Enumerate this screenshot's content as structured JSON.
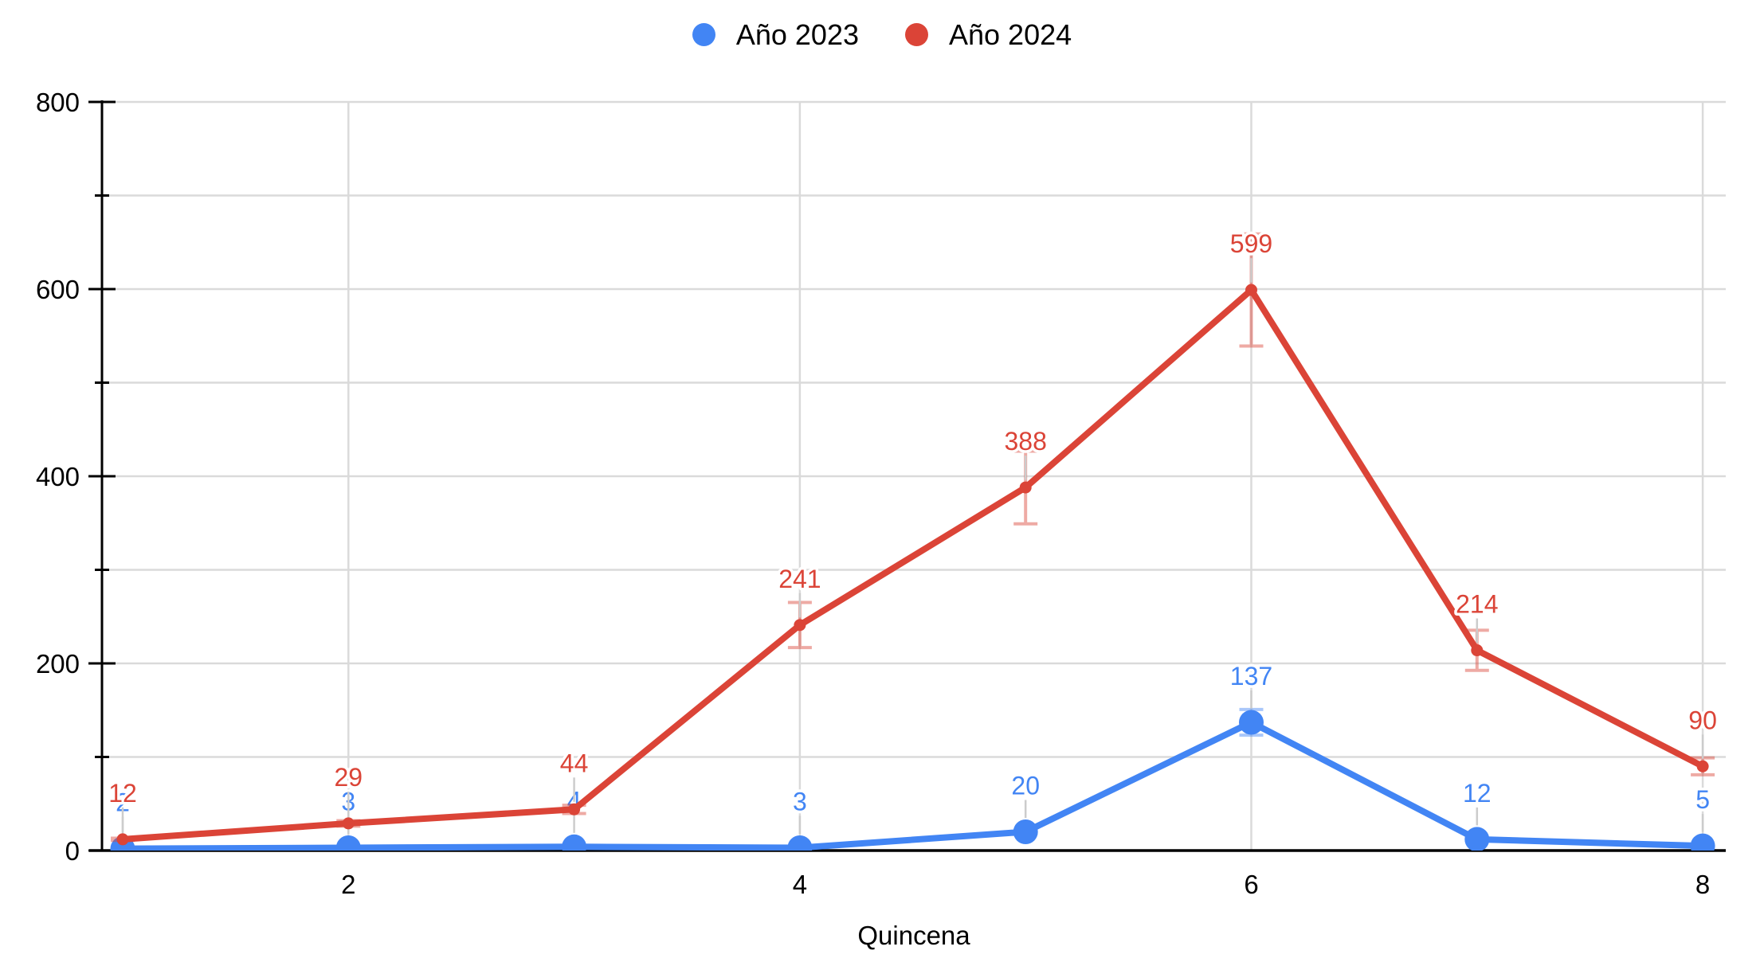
{
  "chart_data": {
    "type": "line",
    "title": "",
    "xlabel": "Quincena",
    "ylabel": "",
    "x": [
      1,
      2,
      3,
      4,
      5,
      6,
      7,
      8
    ],
    "x_tick_labels": [
      "2",
      "4",
      "6",
      "8"
    ],
    "x_ticks": [
      2,
      4,
      6,
      8
    ],
    "ylim": [
      0,
      800
    ],
    "y_major_ticks": [
      0,
      200,
      400,
      600,
      800
    ],
    "y_tick_labels": [
      "0",
      "200",
      "400",
      "600",
      "800"
    ],
    "y_minor_step": 100,
    "grid": "on",
    "legend_position": "top-center",
    "error_bars_pct": 10,
    "series": [
      {
        "name": "Año 2023",
        "color": "#4285F4",
        "values": [
          2,
          3,
          4,
          3,
          20,
          137,
          12,
          5
        ],
        "data_labels": [
          "2",
          "3",
          "4",
          "3",
          "20",
          "137",
          "12",
          "5"
        ]
      },
      {
        "name": "Año 2024",
        "color": "#DB4437",
        "values": [
          12,
          29,
          44,
          241,
          388,
          599,
          214,
          90
        ],
        "data_labels": [
          "12",
          "29",
          "44",
          "241",
          "388",
          "599",
          "214",
          "90"
        ]
      }
    ],
    "colors": {
      "gridline": "#DADADA",
      "axis": "#000000",
      "tick_label": "#000000",
      "label_stem": "#CCCCCC",
      "background": "#FFFFFF"
    }
  }
}
